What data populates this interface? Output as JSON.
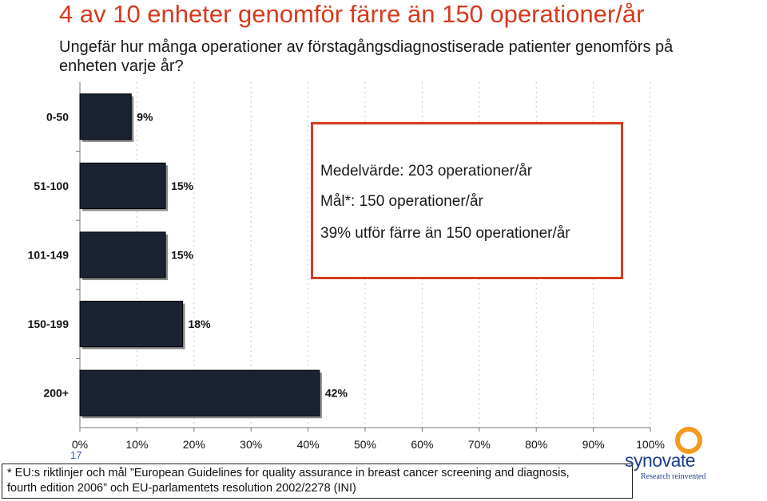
{
  "title": "4 av 10 enheter genomför färre än 150 operationer/år",
  "question": "Ungefär hur många operationer av förstagångsdiagnostiserade patienter genomförs på enheten varje år?",
  "info_box": {
    "mean": "Medelvärde: 203 operationer/år",
    "target": "Mål*: 150 operationer/år",
    "share": "39% utför färre än 150 operationer/år"
  },
  "page_number": "17",
  "footnote": {
    "line1": "* EU:s riktlinjer och mål ”European Guidelines for quality assurance in breast cancer screening and diagnosis,",
    "line2": "fourth edition 2006”  och EU-parlamentets resolution 2002/2278 (INI)"
  },
  "logo": {
    "name": "synovate",
    "tagline": "Research reinvented",
    "icon": "synovate-ring-icon"
  },
  "colors": {
    "title": "#d63a1e",
    "box_border": "#d63a1e",
    "bar_fill": "#1a2332",
    "logo_blue": "#1e3f8c",
    "logo_orange": "#f39a1e"
  },
  "chart_data": {
    "type": "bar",
    "orientation": "horizontal",
    "categories": [
      "0-50",
      "51-100",
      "101-149",
      "150-199",
      "200+"
    ],
    "values": [
      9,
      15,
      15,
      18,
      42
    ],
    "data_labels": [
      "9%",
      "15%",
      "15%",
      "18%",
      "42%"
    ],
    "x_ticks": [
      "0%",
      "10%",
      "20%",
      "30%",
      "40%",
      "50%",
      "60%",
      "70%",
      "80%",
      "90%",
      "100%"
    ],
    "xlim": [
      0,
      100
    ],
    "title": "",
    "xlabel": "",
    "ylabel": "",
    "grid": "vertical dashed gridlines at each 10%",
    "legend": "none"
  }
}
